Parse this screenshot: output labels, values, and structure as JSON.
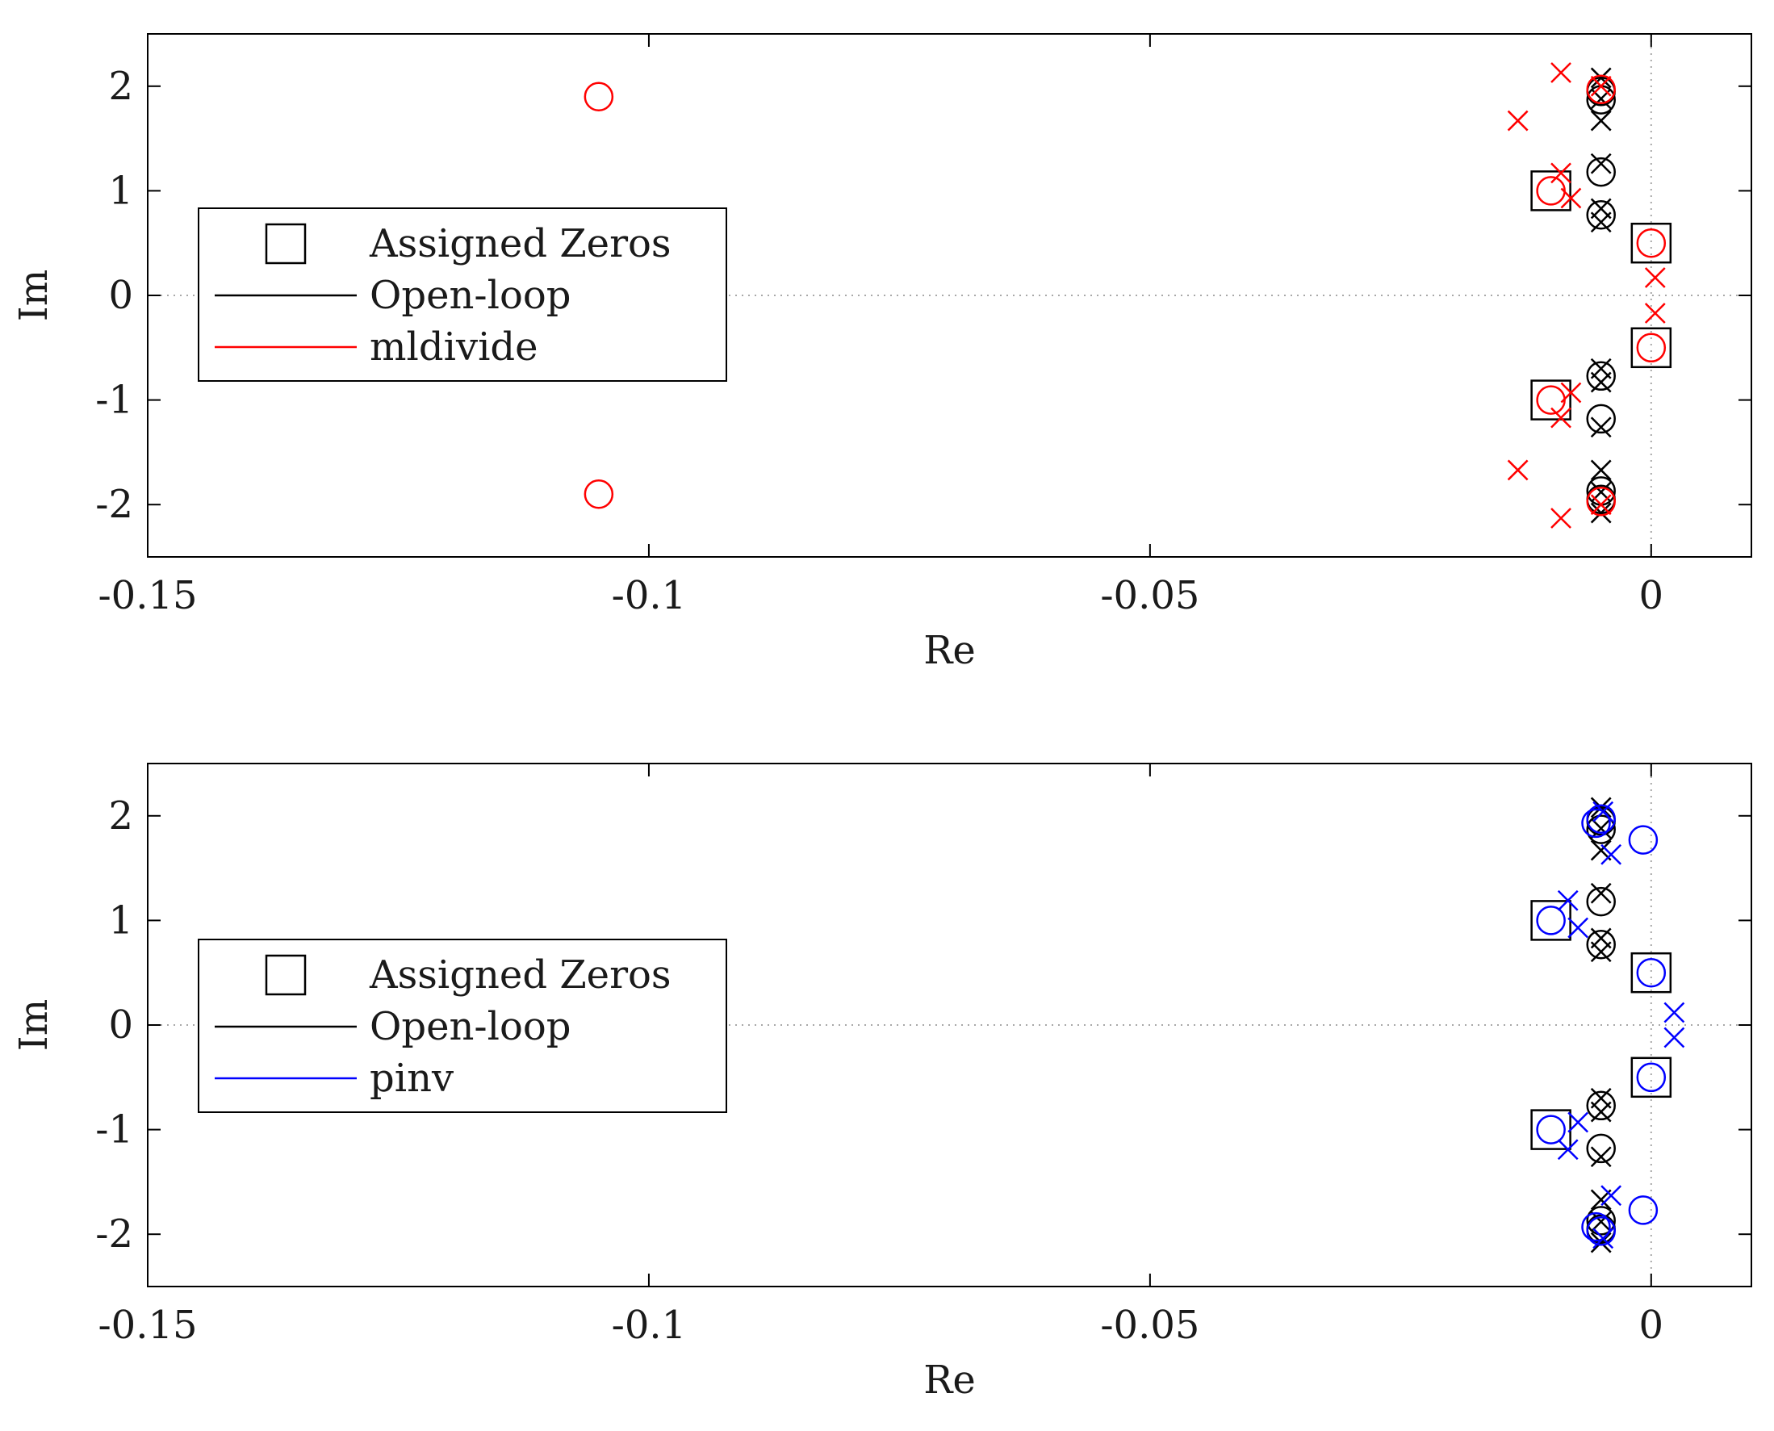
{
  "chart_data": [
    {
      "type": "scatter",
      "panel": "top",
      "xlabel": "Re",
      "ylabel": "Im",
      "xlim": [
        -0.15,
        0.01
      ],
      "ylim": [
        -2.5,
        2.5
      ],
      "xticks": [
        -0.15,
        -0.1,
        -0.05,
        0
      ],
      "xtick_labels": [
        "-0.15",
        "-0.1",
        "-0.05",
        "0"
      ],
      "yticks": [
        -2,
        -1,
        0,
        1,
        2
      ],
      "ytick_labels": [
        "-2",
        "-1",
        "0",
        "1",
        "2"
      ],
      "legend": {
        "placement": "center-left",
        "entries": [
          {
            "label": "Assigned Zeros",
            "marker": "square",
            "color": "#000000"
          },
          {
            "label": "Open-loop",
            "marker": "line",
            "color": "#000000"
          },
          {
            "label": "mldivide",
            "marker": "line",
            "color": "#ff0000"
          }
        ]
      },
      "series": [
        {
          "name": "Assigned Zeros",
          "marker": "square",
          "color": "#000000",
          "points": [
            [
              -0.01,
              1.0
            ],
            [
              -0.01,
              -1.0
            ],
            [
              0.0,
              0.5
            ],
            [
              0.0,
              -0.5
            ]
          ]
        },
        {
          "name": "Open-loop zeros",
          "marker": "circle",
          "color": "#000000",
          "points": [
            [
              -0.005,
              1.87
            ],
            [
              -0.005,
              -1.87
            ],
            [
              -0.005,
              1.18
            ],
            [
              -0.005,
              -1.18
            ],
            [
              -0.005,
              0.77
            ],
            [
              -0.005,
              -0.77
            ],
            [
              -0.005,
              1.95
            ],
            [
              -0.005,
              -1.95
            ]
          ]
        },
        {
          "name": "Open-loop poles",
          "marker": "x",
          "color": "#000000",
          "points": [
            [
              -0.005,
              2.08
            ],
            [
              -0.005,
              -2.08
            ],
            [
              -0.005,
              1.67
            ],
            [
              -0.005,
              -1.67
            ],
            [
              -0.005,
              1.26
            ],
            [
              -0.005,
              -1.26
            ],
            [
              -0.005,
              0.7
            ],
            [
              -0.005,
              -0.7
            ],
            [
              -0.005,
              0.83
            ],
            [
              -0.005,
              -0.83
            ],
            [
              -0.005,
              1.88
            ],
            [
              -0.005,
              -1.88
            ]
          ]
        },
        {
          "name": "mldivide zeros",
          "marker": "circle",
          "color": "#ff0000",
          "points": [
            [
              -0.105,
              1.9
            ],
            [
              -0.105,
              -1.9
            ],
            [
              -0.01,
              1.0
            ],
            [
              -0.01,
              -1.0
            ],
            [
              0.0,
              0.5
            ],
            [
              0.0,
              -0.5
            ],
            [
              -0.005,
              1.97
            ],
            [
              -0.005,
              -1.97
            ]
          ]
        },
        {
          "name": "mldivide poles",
          "marker": "x",
          "color": "#ff0000",
          "points": [
            [
              -0.009,
              2.13
            ],
            [
              -0.009,
              -2.13
            ],
            [
              -0.0133,
              1.67
            ],
            [
              -0.0133,
              -1.67
            ],
            [
              -0.009,
              1.17
            ],
            [
              -0.009,
              -1.17
            ],
            [
              -0.008,
              0.93
            ],
            [
              -0.008,
              -0.93
            ],
            [
              0.0004,
              0.17
            ],
            [
              0.0004,
              -0.17
            ],
            [
              -0.005,
              2.0
            ],
            [
              -0.005,
              -2.0
            ]
          ]
        }
      ]
    },
    {
      "type": "scatter",
      "panel": "bottom",
      "xlabel": "Re",
      "ylabel": "Im",
      "xlim": [
        -0.15,
        0.01
      ],
      "ylim": [
        -2.5,
        2.5
      ],
      "xticks": [
        -0.15,
        -0.1,
        -0.05,
        0
      ],
      "xtick_labels": [
        "-0.15",
        "-0.1",
        "-0.05",
        "0"
      ],
      "yticks": [
        -2,
        -1,
        0,
        1,
        2
      ],
      "ytick_labels": [
        "-2",
        "-1",
        "0",
        "1",
        "2"
      ],
      "legend": {
        "placement": "center-left",
        "entries": [
          {
            "label": "Assigned Zeros",
            "marker": "square",
            "color": "#000000"
          },
          {
            "label": "Open-loop",
            "marker": "line",
            "color": "#000000"
          },
          {
            "label": "pinv",
            "marker": "line",
            "color": "#0000ff"
          }
        ]
      },
      "series": [
        {
          "name": "Assigned Zeros",
          "marker": "square",
          "color": "#000000",
          "points": [
            [
              -0.01,
              1.0
            ],
            [
              -0.01,
              -1.0
            ],
            [
              0.0,
              0.5
            ],
            [
              0.0,
              -0.5
            ]
          ]
        },
        {
          "name": "Open-loop zeros",
          "marker": "circle",
          "color": "#000000",
          "points": [
            [
              -0.005,
              1.87
            ],
            [
              -0.005,
              -1.87
            ],
            [
              -0.005,
              1.18
            ],
            [
              -0.005,
              -1.18
            ],
            [
              -0.005,
              0.77
            ],
            [
              -0.005,
              -0.77
            ],
            [
              -0.005,
              1.95
            ],
            [
              -0.005,
              -1.95
            ]
          ]
        },
        {
          "name": "Open-loop poles",
          "marker": "x",
          "color": "#000000",
          "points": [
            [
              -0.005,
              2.08
            ],
            [
              -0.005,
              -2.08
            ],
            [
              -0.005,
              1.67
            ],
            [
              -0.005,
              -1.67
            ],
            [
              -0.005,
              1.26
            ],
            [
              -0.005,
              -1.26
            ],
            [
              -0.005,
              0.7
            ],
            [
              -0.005,
              -0.7
            ],
            [
              -0.005,
              0.83
            ],
            [
              -0.005,
              -0.83
            ],
            [
              -0.005,
              1.88
            ],
            [
              -0.005,
              -1.88
            ]
          ]
        },
        {
          "name": "pinv zeros",
          "marker": "circle",
          "color": "#0000ff",
          "points": [
            [
              -0.01,
              1.0
            ],
            [
              -0.01,
              -1.0
            ],
            [
              0.0,
              0.5
            ],
            [
              0.0,
              -0.5
            ],
            [
              -0.0008,
              1.77
            ],
            [
              -0.0008,
              -1.77
            ],
            [
              -0.0055,
              1.93
            ],
            [
              -0.0055,
              -1.93
            ],
            [
              -0.005,
              1.97
            ],
            [
              -0.005,
              -1.97
            ]
          ]
        },
        {
          "name": "pinv poles",
          "marker": "x",
          "color": "#0000ff",
          "points": [
            [
              -0.0083,
              1.19
            ],
            [
              -0.0083,
              -1.19
            ],
            [
              -0.0073,
              0.93
            ],
            [
              -0.0073,
              -0.93
            ],
            [
              -0.004,
              1.63
            ],
            [
              -0.004,
              -1.63
            ],
            [
              -0.0048,
              2.04
            ],
            [
              -0.0048,
              -2.04
            ],
            [
              0.0023,
              0.12
            ],
            [
              0.0023,
              -0.12
            ]
          ]
        }
      ]
    }
  ]
}
